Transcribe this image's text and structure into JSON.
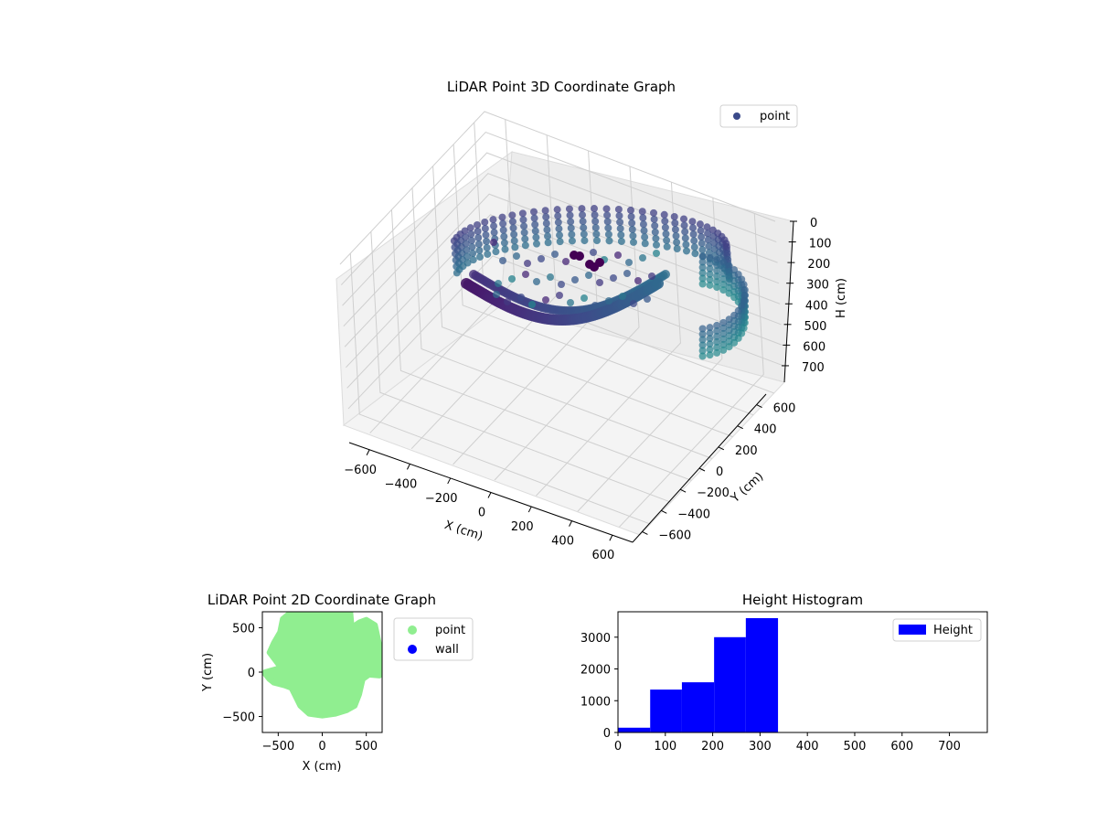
{
  "chart_data": [
    {
      "type": "scatter",
      "projection": "3d",
      "title": "LiDAR Point 3D Coordinate Graph",
      "xlabel": "X (cm)",
      "ylabel": "Y (cm)",
      "zlabel": "H (cm)",
      "xlim": [
        -700,
        700
      ],
      "ylim": [
        -700,
        700
      ],
      "zlim": [
        780,
        0
      ],
      "xticks": [
        "−600",
        "−400",
        "−200",
        "0",
        "200",
        "400",
        "600"
      ],
      "yticks": [
        "−600",
        "−400",
        "−200",
        "0",
        "200",
        "400",
        "600"
      ],
      "zticks": [
        "0",
        "100",
        "200",
        "300",
        "400",
        "500",
        "600",
        "700"
      ],
      "grid": true,
      "legend": {
        "position": "top-right",
        "entries": [
          {
            "name": "point",
            "color": "#3b4a8a"
          }
        ]
      },
      "colormap": "viridis",
      "series": [
        {
          "name": "point",
          "description_of_shape": "ring-like wall of points around the origin, heights mostly 0–340 cm"
        }
      ]
    },
    {
      "type": "scatter",
      "title": "LiDAR Point 2D Coordinate Graph",
      "xlabel": "X (cm)",
      "ylabel": "Y (cm)",
      "xlim": [
        -680,
        680
      ],
      "ylim": [
        -680,
        680
      ],
      "xticks": [
        "−500",
        "0",
        "500"
      ],
      "yticks": [
        "−500",
        "0",
        "500"
      ],
      "legend": {
        "position": "outside-right",
        "entries": [
          {
            "name": "point",
            "color": "#90ee90"
          },
          {
            "name": "wall",
            "color": "#0000ff"
          }
        ]
      },
      "series": [
        {
          "name": "point",
          "color": "#90ee90",
          "outline": [
            [
              -470,
              50
            ],
            [
              -650,
              0
            ],
            [
              -650,
              -20
            ],
            [
              -600,
              -80
            ],
            [
              -550,
              -120
            ],
            [
              -430,
              -150
            ],
            [
              -350,
              -180
            ],
            [
              -250,
              -380
            ],
            [
              -150,
              -470
            ],
            [
              0,
              -490
            ],
            [
              150,
              -470
            ],
            [
              280,
              -430
            ],
            [
              370,
              -380
            ],
            [
              420,
              -250
            ],
            [
              460,
              -80
            ],
            [
              530,
              -30
            ],
            [
              650,
              -40
            ],
            [
              650,
              300
            ],
            [
              600,
              530
            ],
            [
              500,
              590
            ],
            [
              420,
              560
            ],
            [
              330,
              500
            ],
            [
              250,
              430
            ],
            [
              330,
              560
            ],
            [
              320,
              680
            ],
            [
              -350,
              680
            ],
            [
              -450,
              600
            ],
            [
              -480,
              450
            ],
            [
              -550,
              330
            ],
            [
              -600,
              220
            ]
          ]
        },
        {
          "name": "wall",
          "color": "#0000ff",
          "points": []
        }
      ]
    },
    {
      "type": "histogram",
      "title": "Height Histogram",
      "xlim": [
        0,
        780
      ],
      "ylim": [
        0,
        3800
      ],
      "xticks": [
        "0",
        "100",
        "200",
        "300",
        "400",
        "500",
        "600",
        "700"
      ],
      "yticks": [
        "0",
        "1000",
        "2000",
        "3000"
      ],
      "legend": {
        "position": "top-right",
        "entries": [
          {
            "name": "Height",
            "color": "#0000ff"
          }
        ]
      },
      "bins": [
        {
          "x0": 0,
          "x1": 68,
          "count": 150
        },
        {
          "x0": 68,
          "x1": 135,
          "count": 1350
        },
        {
          "x0": 135,
          "x1": 203,
          "count": 1580
        },
        {
          "x0": 203,
          "x1": 270,
          "count": 3000
        },
        {
          "x0": 270,
          "x1": 338,
          "count": 3600
        }
      ],
      "color": "#0000ff"
    }
  ]
}
